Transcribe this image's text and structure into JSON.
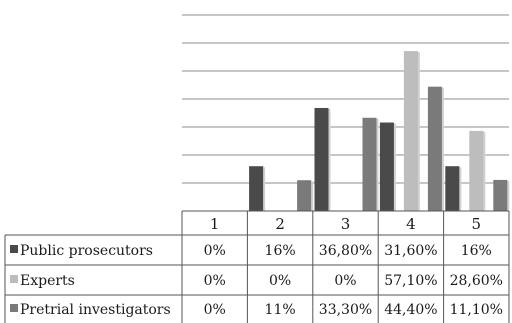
{
  "chart_data": {
    "type": "bar",
    "categories": [
      "1",
      "2",
      "3",
      "4",
      "5"
    ],
    "ylim": [
      0,
      70
    ],
    "grid": true,
    "legend": "data-table-left",
    "series": [
      {
        "name": "Public prosecutors",
        "values": [
          0,
          16,
          36.8,
          31.6,
          16
        ],
        "labels": [
          "0%",
          "16%",
          "36,80%",
          "31,60%",
          "16%"
        ],
        "color": "#4a4a4a"
      },
      {
        "name": "Experts",
        "values": [
          0,
          0,
          0,
          57.1,
          28.6
        ],
        "labels": [
          "0%",
          "0%",
          "0%",
          "57,10%",
          "28,60%"
        ],
        "color": "#bdbdbd"
      },
      {
        "name": "Pretrial investigators",
        "values": [
          0,
          11,
          33.3,
          44.4,
          11.1
        ],
        "labels": [
          "0%",
          "11%",
          "33,30%",
          "44,40%",
          "11,10%"
        ],
        "color": "#7a7a7a"
      }
    ]
  }
}
